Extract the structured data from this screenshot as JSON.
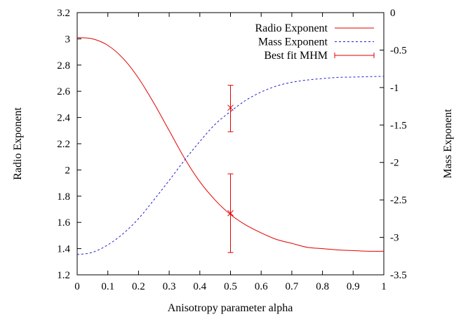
{
  "chart_data": {
    "type": "line",
    "xlabel": "Anisotropy parameter alpha",
    "ylabel": "Radio Exponent",
    "y2label": "Mass Exponent",
    "xlim": [
      0,
      1
    ],
    "ylim": [
      1.2,
      3.2
    ],
    "y2lim": [
      -3.5,
      0
    ],
    "x_ticks": [
      "0",
      "0.1",
      "0.2",
      "0.3",
      "0.4",
      "0.5",
      "0.6",
      "0.7",
      "0.8",
      "0.9",
      "1"
    ],
    "y_ticks": [
      "1.2",
      "1.4",
      "1.6",
      "1.8",
      "2",
      "2.2",
      "2.4",
      "2.6",
      "2.8",
      "3",
      "3.2"
    ],
    "y2_ticks": [
      "-3.5",
      "-3",
      "-2.5",
      "-2",
      "-1.5",
      "-1",
      "-0.5",
      "0"
    ],
    "grid": false,
    "legend_position": "top-right",
    "series": [
      {
        "name": "Radio Exponent",
        "axis": "left",
        "style": "solid",
        "color": "#e00000",
        "x": [
          0,
          0.05,
          0.1,
          0.15,
          0.2,
          0.25,
          0.3,
          0.35,
          0.4,
          0.45,
          0.5,
          0.55,
          0.6,
          0.65,
          0.7,
          0.75,
          0.8,
          0.85,
          0.9,
          0.95,
          1
        ],
        "y": [
          3.01,
          3.0,
          2.95,
          2.85,
          2.7,
          2.51,
          2.3,
          2.09,
          1.91,
          1.77,
          1.66,
          1.58,
          1.52,
          1.47,
          1.44,
          1.41,
          1.4,
          1.39,
          1.385,
          1.38,
          1.38
        ]
      },
      {
        "name": "Mass Exponent",
        "axis": "right",
        "style": "dashed",
        "color": "#2020d0",
        "x": [
          0,
          0.05,
          0.1,
          0.15,
          0.2,
          0.25,
          0.3,
          0.35,
          0.4,
          0.45,
          0.5,
          0.55,
          0.6,
          0.65,
          0.7,
          0.75,
          0.8,
          0.85,
          0.9,
          0.95,
          1
        ],
        "y": [
          -3.23,
          -3.2,
          -3.1,
          -2.95,
          -2.75,
          -2.5,
          -2.24,
          -1.97,
          -1.72,
          -1.49,
          -1.32,
          -1.17,
          -1.06,
          -0.98,
          -0.93,
          -0.9,
          -0.88,
          -0.865,
          -0.86,
          -0.855,
          -0.85
        ]
      },
      {
        "name": "Best fit MHM",
        "type": "errorbar",
        "color": "#e00000",
        "points": [
          {
            "axis": "left",
            "x": 0.5,
            "y": 1.67,
            "ymin": 1.37,
            "ymax": 1.97
          },
          {
            "axis": "right",
            "x": 0.5,
            "y": -1.27,
            "ymin": -1.59,
            "ymax": -0.97
          }
        ]
      }
    ]
  }
}
